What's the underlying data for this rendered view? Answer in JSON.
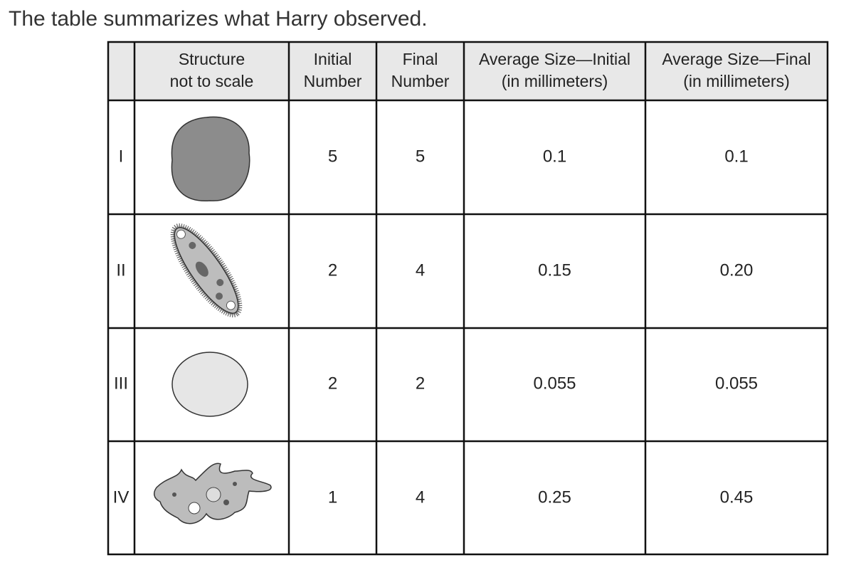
{
  "intro": "The table summarizes what Harry observed.",
  "table": {
    "header": [
      [
        "Structure",
        "not to scale"
      ],
      [
        "Initial",
        "Number"
      ],
      [
        "Final",
        "Number"
      ],
      [
        "Average Size—Initial",
        "(in millimeters)"
      ],
      [
        "Average Size—Final",
        "(in millimeters)"
      ]
    ],
    "rows": [
      {
        "label": "I",
        "cells": [
          "5",
          "5",
          "0.1",
          "0.1"
        ]
      },
      {
        "label": "II",
        "cells": [
          "2",
          "4",
          "0.15",
          "0.20"
        ]
      },
      {
        "label": "III",
        "cells": [
          "2",
          "2",
          "0.055",
          "0.055"
        ]
      },
      {
        "label": "IV",
        "cells": [
          "1",
          "4",
          "0.25",
          "0.45"
        ]
      }
    ]
  }
}
